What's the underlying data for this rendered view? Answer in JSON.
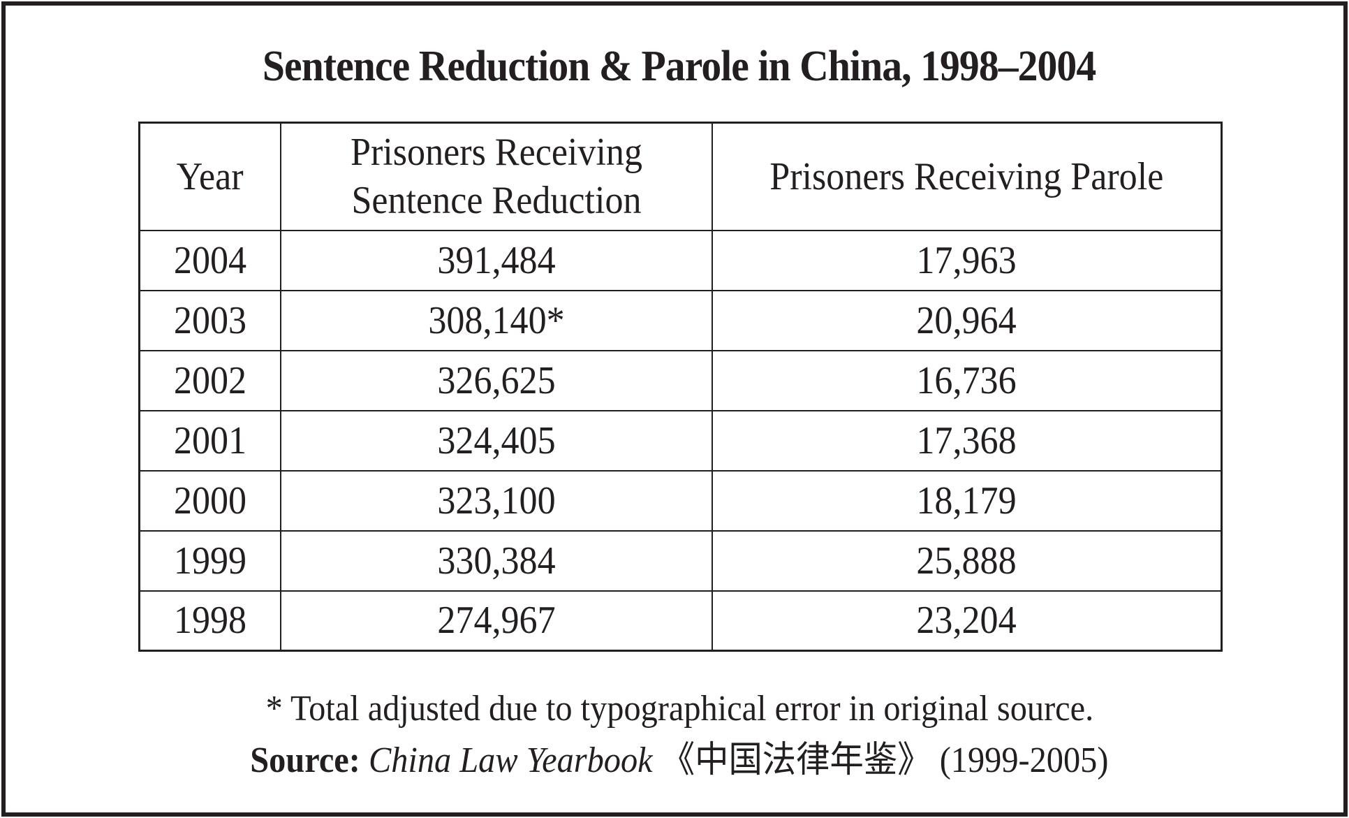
{
  "title": "Sentence Reduction & Parole in China, 1998–2004",
  "table": {
    "header": {
      "year": "Year",
      "reduction_line1": "Prisoners Receiving",
      "reduction_line2": "Sentence Reduction",
      "parole": "Prisoners Receiving Parole"
    },
    "rows": [
      {
        "year": "2004",
        "reduction": "391,484",
        "parole": "17,963"
      },
      {
        "year": "2003",
        "reduction": "308,140*",
        "parole": "20,964"
      },
      {
        "year": "2002",
        "reduction": "326,625",
        "parole": "16,736"
      },
      {
        "year": "2001",
        "reduction": "324,405",
        "parole": "17,368"
      },
      {
        "year": "2000",
        "reduction": "323,100",
        "parole": "18,179"
      },
      {
        "year": "1999",
        "reduction": "330,384",
        "parole": "25,888"
      },
      {
        "year": "1998",
        "reduction": "274,967",
        "parole": "23,204"
      }
    ]
  },
  "footnote": "* Total adjusted due to typographical error in original source.",
  "source": {
    "label": "Source:",
    "publication_title": "China Law Yearbook",
    "publication_title_chinese": "《中国法律年鉴》",
    "edition_years": "(1999-2005)"
  },
  "colors": {
    "ink": "#231f20",
    "background": "#ffffff"
  },
  "chart_data": {
    "type": "table",
    "title": "Sentence Reduction & Parole in China, 1998–2004",
    "columns": [
      "Year",
      "Prisoners Receiving Sentence Reduction",
      "Prisoners Receiving Parole"
    ],
    "rows": [
      [
        "2004",
        391484,
        17963
      ],
      [
        "2003",
        308140,
        20964
      ],
      [
        "2002",
        326625,
        16736
      ],
      [
        "2001",
        324405,
        17368
      ],
      [
        "2000",
        323100,
        18179
      ],
      [
        "1999",
        330384,
        25888
      ],
      [
        "1998",
        274967,
        23204
      ]
    ],
    "annotations": [
      "2003 sentence-reduction value shown as 308,140* (total adjusted due to typographical error in original source)"
    ]
  }
}
